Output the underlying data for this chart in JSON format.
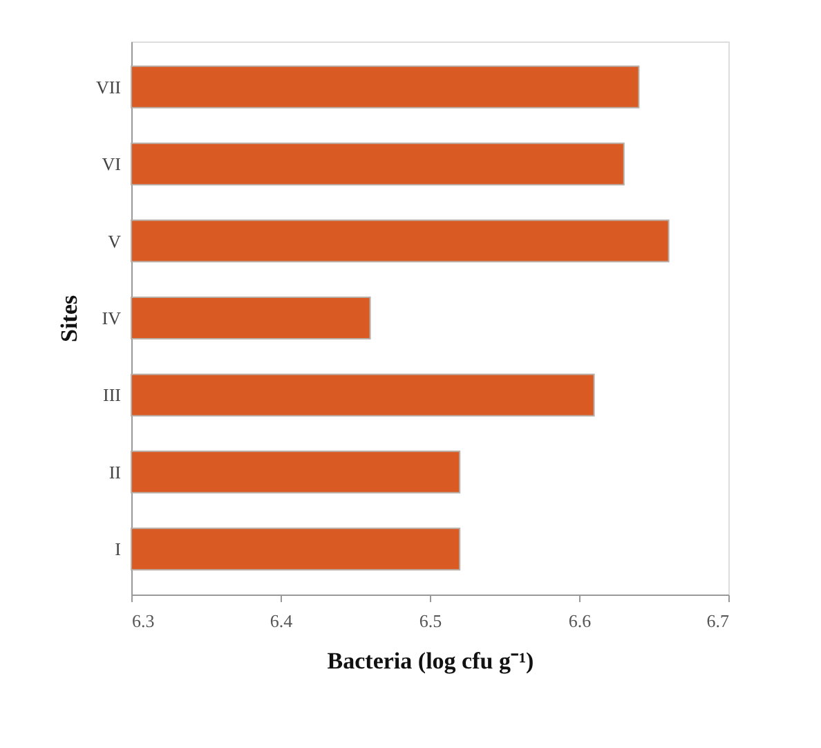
{
  "chart_data": {
    "type": "bar",
    "orientation": "horizontal",
    "xlabel": "Bacteria (log cfu g⁻¹)",
    "ylabel": "Sites",
    "categories": [
      "VII",
      "VI",
      "V",
      "IV",
      "III",
      "II",
      "I"
    ],
    "values": [
      6.64,
      6.63,
      6.66,
      6.46,
      6.61,
      6.52,
      6.52
    ],
    "color": "#d95a22",
    "xlim": [
      6.3,
      6.7
    ],
    "xticks": [
      6.3,
      6.4,
      6.5,
      6.6,
      6.7
    ],
    "grid": false
  }
}
